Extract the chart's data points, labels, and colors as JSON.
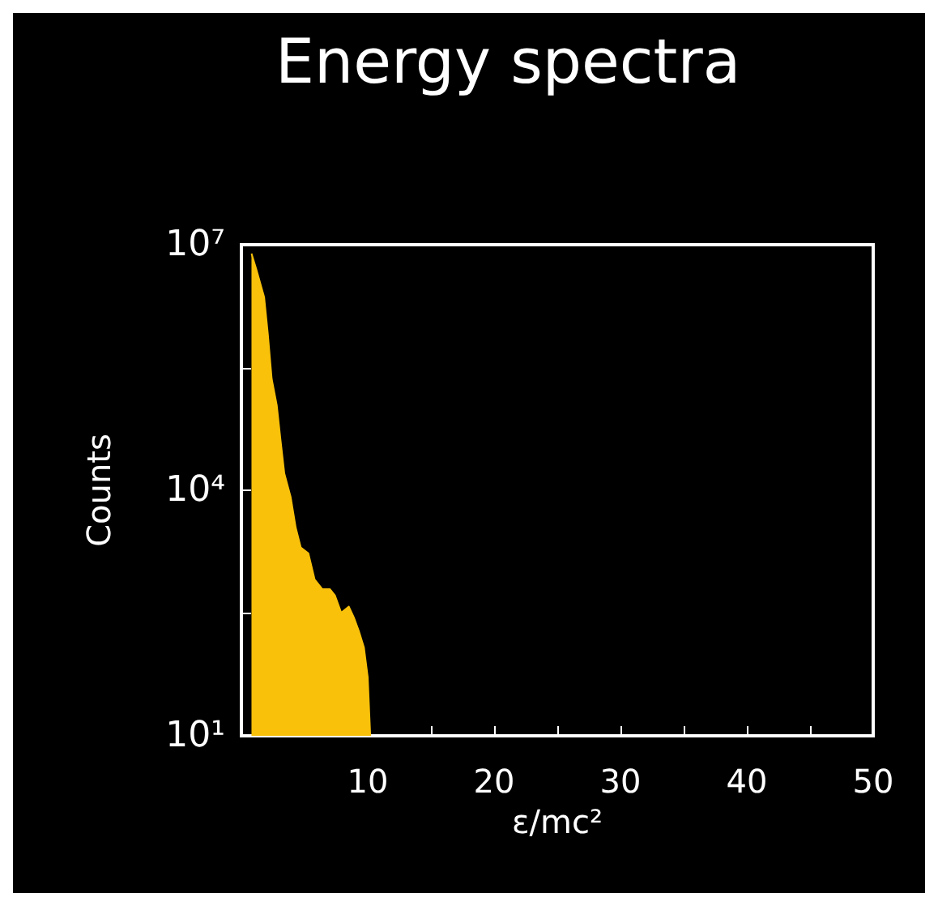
{
  "chart_data": {
    "type": "area",
    "title": "Energy spectra",
    "xlabel": "ε/mc²",
    "ylabel": "Counts",
    "x": [
      0.8,
      1.2,
      1.8,
      2.1,
      2.4,
      2.8,
      3.1,
      3.4,
      3.9,
      4.3,
      4.7,
      5.3,
      5.8,
      6.4,
      7.0,
      7.4,
      7.9,
      8.5,
      8.9,
      9.3,
      9.7,
      10.0,
      10.2
    ],
    "series": [
      {
        "color": "#f9c10a",
        "values": [
          7800000,
          4900000,
          2300000,
          800000,
          230000,
          110000,
          41000,
          16000,
          8300,
          3500,
          2000,
          1700,
          810,
          620,
          620,
          520,
          320,
          380,
          280,
          190,
          120,
          52,
          10
        ]
      }
    ],
    "log": "y",
    "xlim": [
      0,
      50
    ],
    "xticks": [
      {
        "value": 5,
        "label": null
      },
      10,
      {
        "value": 15,
        "label": null
      },
      20,
      {
        "value": 25,
        "label": null
      },
      30,
      {
        "value": 35,
        "label": null
      },
      40,
      {
        "value": 45,
        "label": null
      },
      50
    ],
    "ylim": [
      10,
      10000000
    ],
    "yticks": [
      {
        "value": 10,
        "label": "10¹"
      },
      {
        "value": 316,
        "label": null
      },
      {
        "value": 10000,
        "label": "10⁴"
      },
      {
        "value": 316000,
        "label": null
      },
      {
        "value": 10000000,
        "label": "10⁷"
      }
    ],
    "grid": false
  }
}
